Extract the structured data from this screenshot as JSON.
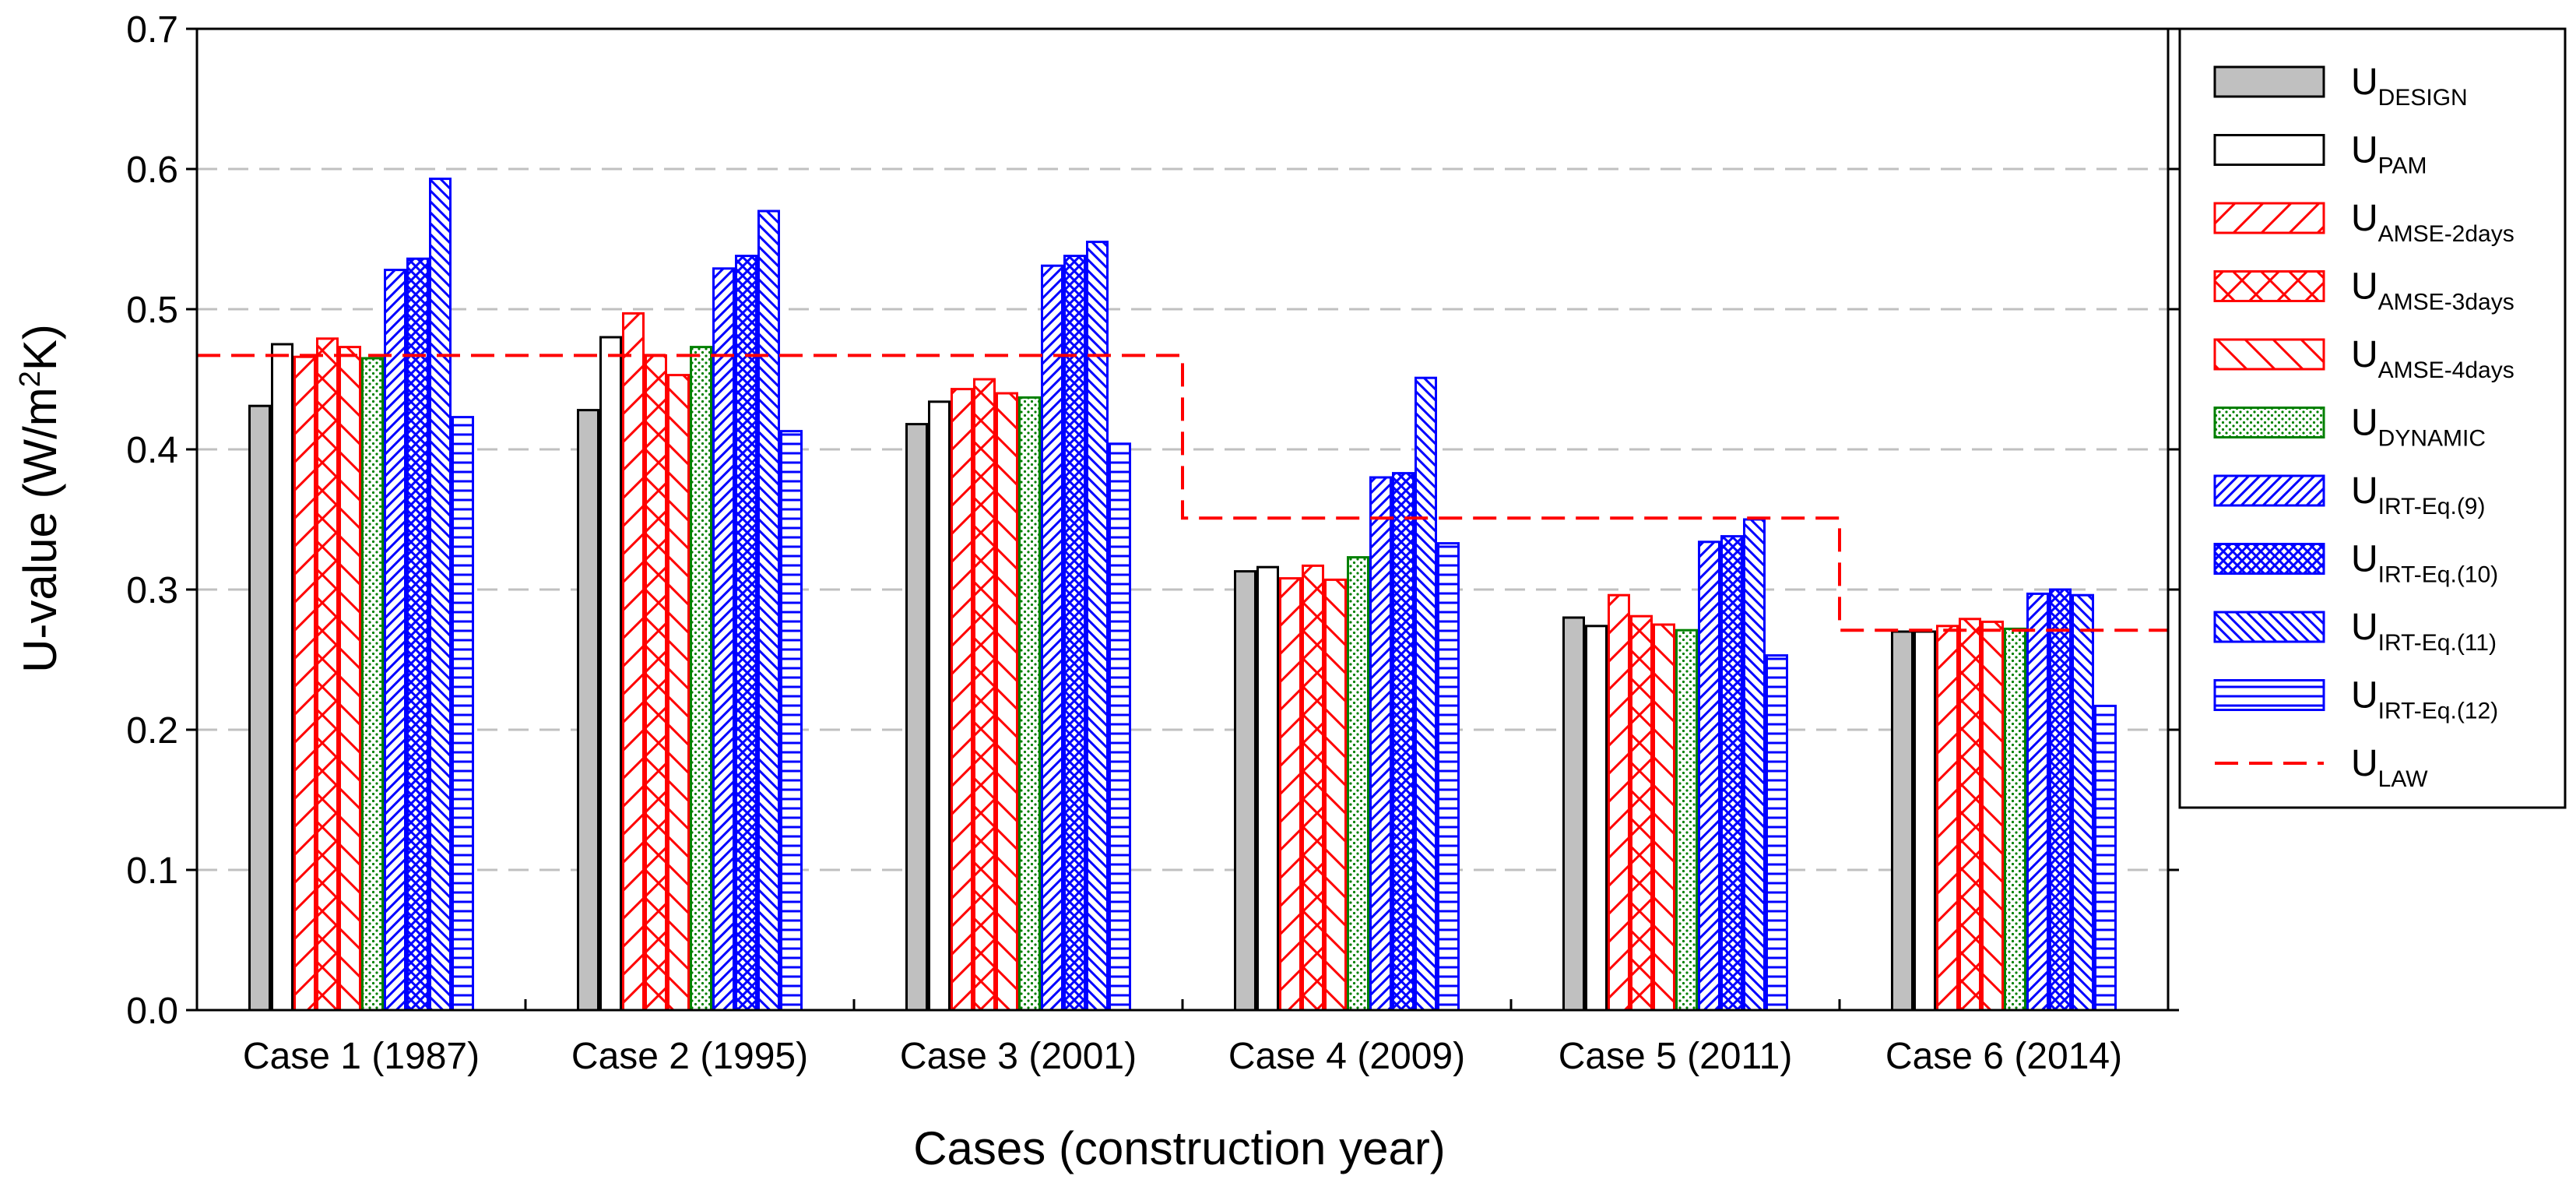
{
  "chart_data": {
    "type": "bar",
    "title": "",
    "xlabel": "Cases (construction year)",
    "ylabel_prefix": "U-value (W/m",
    "ylabel_sup": "2",
    "ylabel_suffix": "K)",
    "ylim": [
      0,
      0.7
    ],
    "yticks": [
      "0.0",
      "0.1",
      "0.2",
      "0.3",
      "0.4",
      "0.5",
      "0.6",
      "0.7"
    ],
    "grid": "horizontal dashed",
    "legend_position": "right",
    "categories": [
      "Case 1 (1987)",
      "Case 2 (1995)",
      "Case 3 (2001)",
      "Case 4 (2009)",
      "Case 5 (2011)",
      "Case 6 (2014)"
    ],
    "series": [
      {
        "name": "U",
        "sub": "DESIGN",
        "color": "#000000",
        "pattern": "gray",
        "values": [
          0.431,
          0.428,
          0.418,
          0.313,
          0.28,
          0.27
        ]
      },
      {
        "name": "U",
        "sub": "PAM",
        "color": "#000000",
        "pattern": "none",
        "values": [
          0.475,
          0.48,
          0.434,
          0.316,
          0.274,
          0.27
        ]
      },
      {
        "name": "U",
        "sub": "AMSE-2days",
        "color": "#ff0000",
        "pattern": "diag-up",
        "values": [
          0.466,
          0.497,
          0.443,
          0.308,
          0.296,
          0.274
        ]
      },
      {
        "name": "U",
        "sub": "AMSE-3days",
        "color": "#ff0000",
        "pattern": "cross",
        "values": [
          0.479,
          0.467,
          0.45,
          0.317,
          0.281,
          0.279
        ]
      },
      {
        "name": "U",
        "sub": "AMSE-4days",
        "color": "#ff0000",
        "pattern": "diag-down",
        "values": [
          0.473,
          0.453,
          0.44,
          0.307,
          0.275,
          0.277
        ]
      },
      {
        "name": "U",
        "sub": "DYNAMIC",
        "color": "#008000",
        "pattern": "dots",
        "values": [
          0.465,
          0.473,
          0.437,
          0.323,
          0.271,
          0.272
        ]
      },
      {
        "name": "U",
        "sub": "IRT-Eq.(9)",
        "color": "#0000ff",
        "pattern": "diag-up-dense",
        "values": [
          0.528,
          0.529,
          0.531,
          0.38,
          0.334,
          0.297
        ]
      },
      {
        "name": "U",
        "sub": "IRT-Eq.(10)",
        "color": "#0000ff",
        "pattern": "crosshatch",
        "values": [
          0.536,
          0.538,
          0.538,
          0.383,
          0.338,
          0.3
        ]
      },
      {
        "name": "U",
        "sub": "IRT-Eq.(11)",
        "color": "#0000ff",
        "pattern": "diag-down-dense",
        "values": [
          0.593,
          0.57,
          0.548,
          0.451,
          0.35,
          0.296
        ]
      },
      {
        "name": "U",
        "sub": "IRT-Eq.(12)",
        "color": "#0000ff",
        "pattern": "horizontal",
        "values": [
          0.423,
          0.413,
          0.404,
          0.333,
          0.253,
          0.217
        ]
      }
    ],
    "law_line": {
      "name": "U",
      "sub": "LAW",
      "color": "#ff0000",
      "style": "dashed",
      "levels": [
        0.467,
        0.467,
        0.467,
        0.351,
        0.351,
        0.271
      ]
    }
  }
}
